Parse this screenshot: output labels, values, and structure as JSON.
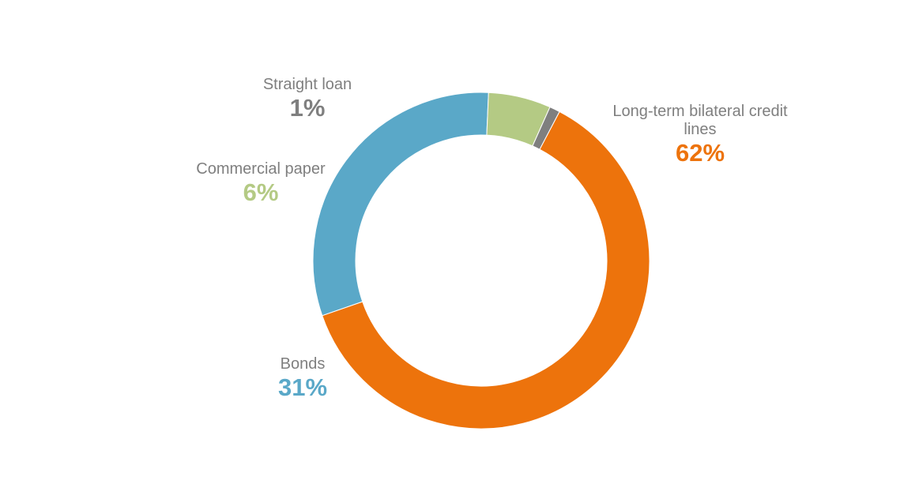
{
  "chart_data": {
    "type": "pie",
    "donut": true,
    "title": "",
    "categories": [
      "Long-term bilateral credit lines",
      "Bonds",
      "Commercial paper",
      "Straight loan"
    ],
    "values": [
      62,
      31,
      6,
      1
    ],
    "labels": [
      "62%",
      "31%",
      "6%",
      "1%"
    ],
    "colors": [
      "#ed730c",
      "#5aa8c8",
      "#b4ca84",
      "#7f7f7f"
    ],
    "start_angle_deg": 0,
    "direction": "clockwise",
    "legend": "none"
  }
}
